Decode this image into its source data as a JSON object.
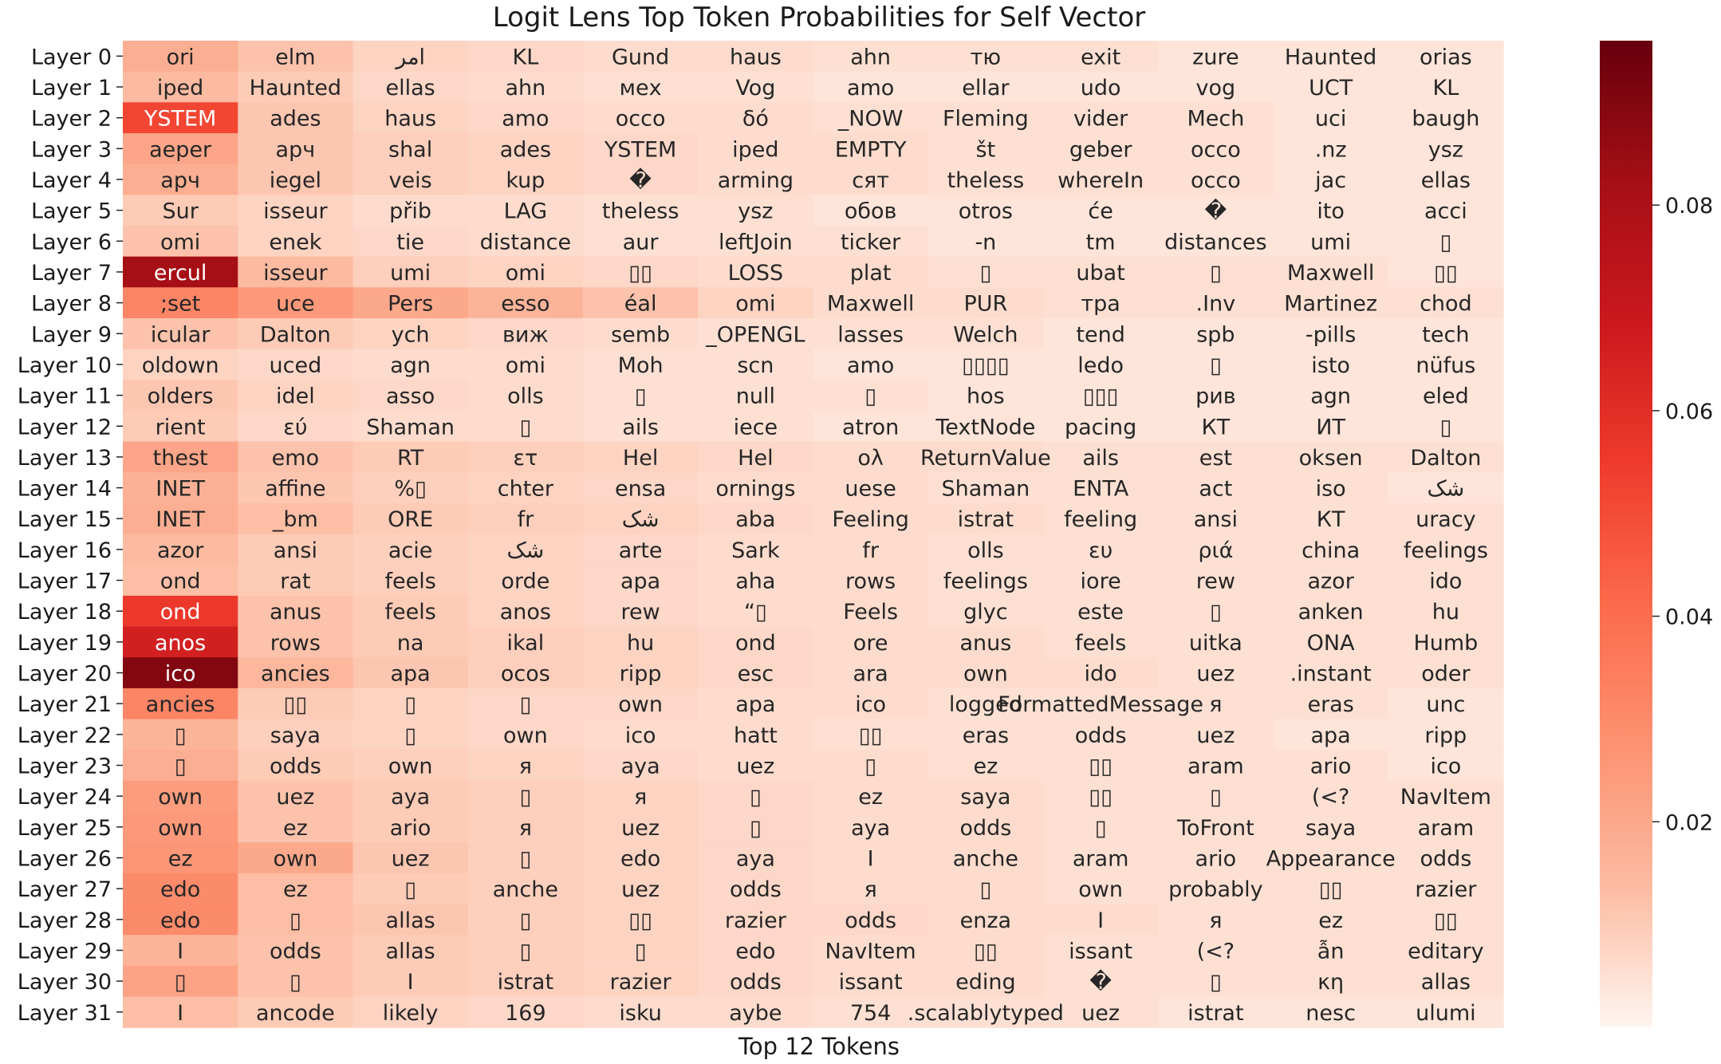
{
  "chart_data": {
    "type": "heatmap",
    "title": "Logit Lens Top Token Probabilities for Self Vector",
    "xlabel": "Top 12 Tokens",
    "ylabel": "",
    "rows": [
      "Layer 0",
      "Layer 1",
      "Layer 2",
      "Layer 3",
      "Layer 4",
      "Layer 5",
      "Layer 6",
      "Layer 7",
      "Layer 8",
      "Layer 9",
      "Layer 10",
      "Layer 11",
      "Layer 12",
      "Layer 13",
      "Layer 14",
      "Layer 15",
      "Layer 16",
      "Layer 17",
      "Layer 18",
      "Layer 19",
      "Layer 20",
      "Layer 21",
      "Layer 22",
      "Layer 23",
      "Layer 24",
      "Layer 25",
      "Layer 26",
      "Layer 27",
      "Layer 28",
      "Layer 29",
      "Layer 30",
      "Layer 31"
    ],
    "tokens": [
      [
        "ori",
        "elm",
        "امر",
        "KL",
        "Gund",
        "haus",
        "ahn",
        "тю",
        "exit",
        "zure",
        "Haunted",
        "orias"
      ],
      [
        "iped",
        "Haunted",
        "ellas",
        "ahn",
        "мех",
        "Vog",
        "amo",
        "ellar",
        "udo",
        "vog",
        "UCT",
        "KL"
      ],
      [
        "YSTEM",
        "ades",
        "haus",
        "amo",
        "occo",
        "δό",
        "_NOW",
        "Fleming",
        "vider",
        "Mech",
        "uci",
        "baugh"
      ],
      [
        "aeper",
        "арч",
        "shal",
        "ades",
        "YSTEM",
        "iped",
        "EMPTY",
        "št",
        "geber",
        "occo",
        ".nz",
        "ysz"
      ],
      [
        "арч",
        "iegel",
        "veis",
        "kup",
        "�",
        "arming",
        "сят",
        "theless",
        "whereIn",
        "occo",
        "jac",
        "ellas"
      ],
      [
        "Sur",
        "isseur",
        "přib",
        "LAG",
        "theless",
        "ysz",
        "обов",
        "otros",
        "će",
        "�",
        "ito",
        "acci"
      ],
      [
        "omi",
        "enek",
        "tie",
        "distance",
        "aur",
        "leftJoin",
        "ticker",
        "-n",
        "tm",
        "distances",
        "umi",
        "▯"
      ],
      [
        "ercul",
        "isseur",
        "umi",
        "omi",
        "▯▯",
        "LOSS",
        "plat",
        "▯",
        "ubat",
        "▯",
        "Maxwell",
        "▯▯"
      ],
      [
        ";set",
        "uce",
        "Pers",
        "esso",
        "éal",
        "omi",
        "Maxwell",
        "PUR",
        "тра",
        ".Inv",
        "Martinez",
        "chod"
      ],
      [
        "icular",
        "Dalton",
        "ych",
        "виж",
        "semb",
        "_OPENGL",
        "lasses",
        "Welch",
        "tend",
        "spb",
        "-pills",
        "tech"
      ],
      [
        "oldown",
        "uced",
        "agn",
        "omi",
        "Moh",
        "scn",
        "amo",
        "▯▯▯▯",
        "ledo",
        "▯",
        "isto",
        "nüfus"
      ],
      [
        "olders",
        "idel",
        "asso",
        "olls",
        "▯",
        "null",
        "▯",
        "hos",
        "▯▯▯",
        "рив",
        "agn",
        "eled"
      ],
      [
        "rient",
        "εύ",
        "Shaman",
        "▯",
        "ails",
        "iece",
        "atron",
        "TextNode",
        "pacing",
        "КТ",
        "ИТ",
        "▯"
      ],
      [
        "thest",
        "emo",
        "RT",
        "ετ",
        "Hel",
        "Hel",
        "ολ",
        "ReturnValue",
        "ails",
        "est",
        "oksen",
        "Dalton"
      ],
      [
        "INET",
        "affine",
        "%▯",
        "chter",
        "ensa",
        "ornings",
        "uese",
        "Shaman",
        "ENTA",
        "act",
        "iso",
        "شک"
      ],
      [
        "INET",
        "_bm",
        "ORE",
        "fr",
        "شک",
        "aba",
        "Feeling",
        "istrat",
        "feeling",
        "ansi",
        "КТ",
        "uracy"
      ],
      [
        "azor",
        "ansi",
        "acie",
        "شک",
        "arte",
        "Sark",
        "fr",
        "olls",
        "ευ",
        "ριά",
        "china",
        "feelings"
      ],
      [
        "ond",
        "rat",
        "feels",
        "orde",
        "apa",
        "aha",
        "rows",
        "feelings",
        "iore",
        "rew",
        "azor",
        "ido"
      ],
      [
        "ond",
        "anus",
        "feels",
        "anos",
        "rew",
        "“▯",
        "Feels",
        "glyc",
        "este",
        "▯",
        "anken",
        "hu"
      ],
      [
        "anos",
        "rows",
        "na",
        "ikal",
        "hu",
        "ond",
        "ore",
        "anus",
        "feels",
        "uitka",
        "ONA",
        "Humb"
      ],
      [
        "ico",
        "ancies",
        "apa",
        "ocos",
        "ripp",
        "esc",
        "ara",
        "own",
        "ido",
        "uez",
        ".instant",
        "oder"
      ],
      [
        "ancies",
        "▯▯",
        "▯",
        "▯",
        "own",
        "apa",
        "ico",
        "logged",
        "FormattedMessage",
        "я",
        "eras",
        "unc"
      ],
      [
        "▯",
        "saya",
        "▯",
        "own",
        "ico",
        "hatt",
        "▯▯",
        "eras",
        "odds",
        "uez",
        "apa",
        "ripp"
      ],
      [
        "▯",
        "odds",
        "own",
        "я",
        "aya",
        "uez",
        "▯",
        "ez",
        "▯▯",
        "aram",
        "ario",
        "ico"
      ],
      [
        "own",
        "uez",
        "aya",
        "▯",
        "я",
        "▯",
        "ez",
        "saya",
        "▯▯",
        "▯",
        "(<?",
        "NavItem"
      ],
      [
        "own",
        "ez",
        "ario",
        "я",
        "uez",
        "▯",
        "aya",
        "odds",
        "▯",
        "ToFront",
        "saya",
        "aram"
      ],
      [
        "ez",
        "own",
        "uez",
        "▯",
        "edo",
        "aya",
        "I",
        "anche",
        "aram",
        "ario",
        "Appearance",
        "odds"
      ],
      [
        "edo",
        "ez",
        "▯",
        "anche",
        "uez",
        "odds",
        "я",
        "▯",
        "own",
        "probably",
        "▯▯",
        "razier"
      ],
      [
        "edo",
        "▯",
        "allas",
        "▯",
        "▯▯",
        "razier",
        "odds",
        "enza",
        "I",
        "я",
        "ez",
        "▯▯"
      ],
      [
        "I",
        "odds",
        "allas",
        "▯",
        "▯",
        "edo",
        "NavItem",
        "▯▯",
        "issant",
        "(<?",
        "ẫn",
        "editary"
      ],
      [
        "▯",
        "▯",
        "I",
        "istrat",
        "razier",
        "odds",
        "issant",
        "eding",
        "�",
        "▯",
        "κη",
        "allas"
      ],
      [
        "I",
        "ancode",
        "likely",
        "169",
        "isku",
        "aybe",
        "754",
        ".scalablytyped",
        "uez",
        "istrat",
        "nesc",
        "ulumi"
      ]
    ],
    "values": [
      [
        0.018,
        0.012,
        0.008,
        0.007,
        0.006,
        0.006,
        0.005,
        0.005,
        0.005,
        0.004,
        0.004,
        0.004
      ],
      [
        0.014,
        0.01,
        0.007,
        0.006,
        0.005,
        0.005,
        0.004,
        0.004,
        0.004,
        0.004,
        0.004,
        0.004
      ],
      [
        0.052,
        0.011,
        0.008,
        0.007,
        0.006,
        0.006,
        0.005,
        0.005,
        0.005,
        0.005,
        0.004,
        0.004
      ],
      [
        0.021,
        0.011,
        0.009,
        0.008,
        0.007,
        0.006,
        0.006,
        0.005,
        0.005,
        0.005,
        0.004,
        0.004
      ],
      [
        0.018,
        0.011,
        0.009,
        0.008,
        0.007,
        0.006,
        0.006,
        0.005,
        0.005,
        0.005,
        0.004,
        0.004
      ],
      [
        0.01,
        0.008,
        0.006,
        0.006,
        0.005,
        0.005,
        0.004,
        0.004,
        0.004,
        0.004,
        0.004,
        0.004
      ],
      [
        0.012,
        0.008,
        0.007,
        0.006,
        0.005,
        0.005,
        0.005,
        0.004,
        0.004,
        0.004,
        0.004,
        0.004
      ],
      [
        0.082,
        0.014,
        0.009,
        0.008,
        0.007,
        0.006,
        0.006,
        0.005,
        0.005,
        0.005,
        0.005,
        0.004
      ],
      [
        0.032,
        0.025,
        0.02,
        0.016,
        0.012,
        0.008,
        0.006,
        0.006,
        0.005,
        0.005,
        0.005,
        0.005
      ],
      [
        0.012,
        0.01,
        0.008,
        0.007,
        0.006,
        0.005,
        0.005,
        0.005,
        0.004,
        0.004,
        0.004,
        0.004
      ],
      [
        0.008,
        0.007,
        0.006,
        0.006,
        0.005,
        0.005,
        0.004,
        0.004,
        0.004,
        0.004,
        0.004,
        0.004
      ],
      [
        0.011,
        0.008,
        0.007,
        0.006,
        0.005,
        0.005,
        0.005,
        0.004,
        0.004,
        0.004,
        0.004,
        0.004
      ],
      [
        0.01,
        0.007,
        0.006,
        0.006,
        0.005,
        0.005,
        0.004,
        0.004,
        0.004,
        0.004,
        0.004,
        0.004
      ],
      [
        0.021,
        0.012,
        0.01,
        0.009,
        0.008,
        0.007,
        0.006,
        0.006,
        0.005,
        0.005,
        0.005,
        0.005
      ],
      [
        0.017,
        0.011,
        0.009,
        0.008,
        0.007,
        0.006,
        0.006,
        0.005,
        0.005,
        0.005,
        0.005,
        0.004
      ],
      [
        0.018,
        0.013,
        0.01,
        0.009,
        0.008,
        0.007,
        0.006,
        0.006,
        0.005,
        0.005,
        0.005,
        0.005
      ],
      [
        0.014,
        0.01,
        0.009,
        0.008,
        0.007,
        0.006,
        0.006,
        0.005,
        0.005,
        0.005,
        0.005,
        0.005
      ],
      [
        0.013,
        0.01,
        0.009,
        0.008,
        0.007,
        0.006,
        0.006,
        0.005,
        0.005,
        0.005,
        0.005,
        0.005
      ],
      [
        0.056,
        0.012,
        0.01,
        0.008,
        0.007,
        0.006,
        0.006,
        0.005,
        0.005,
        0.005,
        0.005,
        0.005
      ],
      [
        0.066,
        0.012,
        0.01,
        0.009,
        0.008,
        0.007,
        0.006,
        0.006,
        0.005,
        0.005,
        0.005,
        0.005
      ],
      [
        0.09,
        0.015,
        0.011,
        0.009,
        0.008,
        0.007,
        0.006,
        0.006,
        0.006,
        0.005,
        0.005,
        0.005
      ],
      [
        0.032,
        0.01,
        0.008,
        0.007,
        0.007,
        0.006,
        0.006,
        0.005,
        0.005,
        0.005,
        0.005,
        0.004
      ],
      [
        0.016,
        0.009,
        0.008,
        0.007,
        0.006,
        0.006,
        0.005,
        0.005,
        0.005,
        0.005,
        0.004,
        0.004
      ],
      [
        0.018,
        0.01,
        0.009,
        0.008,
        0.007,
        0.006,
        0.006,
        0.005,
        0.005,
        0.005,
        0.005,
        0.004
      ],
      [
        0.024,
        0.012,
        0.01,
        0.009,
        0.008,
        0.007,
        0.006,
        0.006,
        0.005,
        0.005,
        0.005,
        0.005
      ],
      [
        0.025,
        0.012,
        0.01,
        0.009,
        0.008,
        0.007,
        0.006,
        0.006,
        0.005,
        0.005,
        0.005,
        0.005
      ],
      [
        0.026,
        0.02,
        0.011,
        0.009,
        0.008,
        0.007,
        0.006,
        0.006,
        0.005,
        0.005,
        0.005,
        0.005
      ],
      [
        0.03,
        0.013,
        0.01,
        0.009,
        0.008,
        0.007,
        0.006,
        0.006,
        0.005,
        0.005,
        0.005,
        0.005
      ],
      [
        0.03,
        0.013,
        0.011,
        0.009,
        0.008,
        0.007,
        0.007,
        0.006,
        0.006,
        0.005,
        0.005,
        0.005
      ],
      [
        0.016,
        0.012,
        0.01,
        0.009,
        0.008,
        0.007,
        0.006,
        0.006,
        0.005,
        0.005,
        0.005,
        0.005
      ],
      [
        0.022,
        0.012,
        0.01,
        0.009,
        0.008,
        0.007,
        0.006,
        0.006,
        0.005,
        0.005,
        0.005,
        0.005
      ],
      [
        0.013,
        0.01,
        0.008,
        0.007,
        0.006,
        0.006,
        0.005,
        0.005,
        0.005,
        0.004,
        0.004,
        0.004
      ]
    ],
    "colorbar": {
      "min": 0.0,
      "max": 0.096,
      "ticks": [
        0.02,
        0.04,
        0.06,
        0.08
      ],
      "tick_labels": [
        "0.02",
        "0.04",
        "0.06",
        "0.08"
      ],
      "colormap": "Reds",
      "colors": [
        "#fff5f0",
        "#fcbba1",
        "#fc9272",
        "#fb6a4a",
        "#ef3b2c",
        "#cb181d",
        "#a50f15",
        "#67000d"
      ]
    }
  }
}
